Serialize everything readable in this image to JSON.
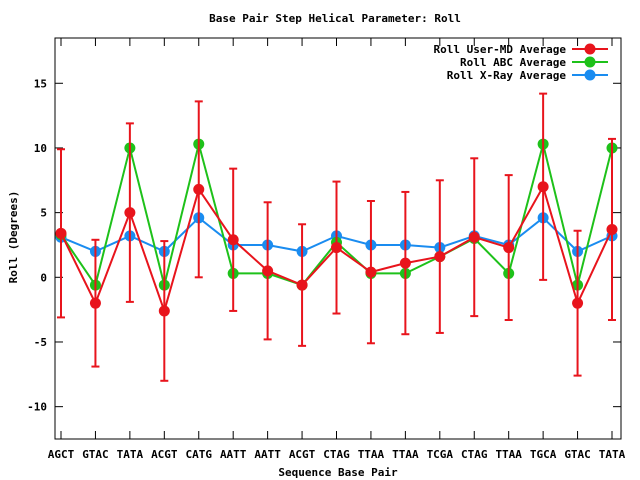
{
  "chart_data": {
    "type": "line",
    "title": "Base Pair Step Helical Parameter: Roll",
    "xlabel": "Sequence Base Pair",
    "ylabel": "Roll (Degrees)",
    "categories": [
      "AGCT",
      "GTAC",
      "TATA",
      "ACGT",
      "CATG",
      "AATT",
      "AATT",
      "ACGT",
      "CTAG",
      "TTAA",
      "TTAA",
      "TCGA",
      "CTAG",
      "TTAA",
      "TGCA",
      "GTAC",
      "TATA"
    ],
    "ylim": [
      -12.5,
      18.5
    ],
    "yticks": [
      -10,
      -5,
      0,
      5,
      10,
      15
    ],
    "grid": false,
    "legend_position": "top-right",
    "series": [
      {
        "name": "Roll User-MD Average",
        "color": "#e8141c",
        "values": [
          3.4,
          -2.0,
          5.0,
          -2.6,
          6.8,
          2.9,
          0.5,
          -0.6,
          2.3,
          0.4,
          1.1,
          1.6,
          3.1,
          2.3,
          7.0,
          -2.0,
          3.7
        ],
        "errors": [
          6.5,
          4.9,
          6.9,
          5.4,
          6.8,
          5.5,
          5.3,
          4.7,
          5.1,
          5.5,
          5.5,
          5.9,
          6.1,
          5.6,
          7.2,
          5.6,
          7.0
        ]
      },
      {
        "name": "Roll ABC Average",
        "color": "#1ec11a",
        "values": [
          3.3,
          -0.6,
          10.0,
          -0.6,
          10.3,
          0.3,
          0.3,
          -0.6,
          2.7,
          0.3,
          0.3,
          1.6,
          3.0,
          0.3,
          10.3,
          -0.6,
          10.0
        ]
      },
      {
        "name": "Roll X-Ray Average",
        "color": "#1a8cf0",
        "values": [
          3.1,
          2.0,
          3.2,
          2.0,
          4.6,
          2.5,
          2.5,
          2.0,
          3.2,
          2.5,
          2.5,
          2.3,
          3.2,
          2.5,
          4.6,
          2.0,
          3.2
        ]
      }
    ]
  }
}
